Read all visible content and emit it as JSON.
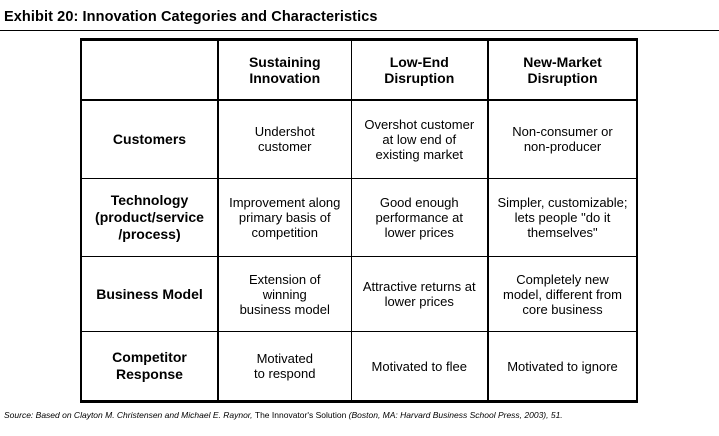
{
  "exhibit": {
    "title": "Exhibit 20: Innovation Categories and Characteristics"
  },
  "table": {
    "corner": "",
    "columns": [
      "Sustaining\nInnovation",
      "Low-End\nDisruption",
      "New-Market\nDisruption"
    ],
    "rows": [
      {
        "label": "Customers",
        "cells": [
          "Undershot\ncustomer",
          "Overshot customer\nat low end of\nexisting market",
          "Non-consumer or\nnon-producer"
        ]
      },
      {
        "label": "Technology\n(product/service\n/process)",
        "cells": [
          "Improvement along\nprimary basis of\ncompetition",
          "Good enough\nperformance at\nlower prices",
          "Simpler, customizable;\nlets people \"do it\nthemselves\""
        ]
      },
      {
        "label": "Business Model",
        "cells": [
          "Extension of\nwinning\nbusiness model",
          "Attractive returns at\nlower prices",
          "Completely new\nmodel, different from\ncore  business"
        ]
      },
      {
        "label": "Competitor\nResponse",
        "cells": [
          "Motivated\nto respond",
          "Motivated to flee",
          "Motivated to ignore"
        ]
      }
    ]
  },
  "source": {
    "prefix": "Source: Based on Clayton M. Christensen and Michael E. Raynor, ",
    "book": "The Innovator's Solution",
    "suffix": " (Boston, MA: Harvard Business School Press, 2003), 51."
  }
}
